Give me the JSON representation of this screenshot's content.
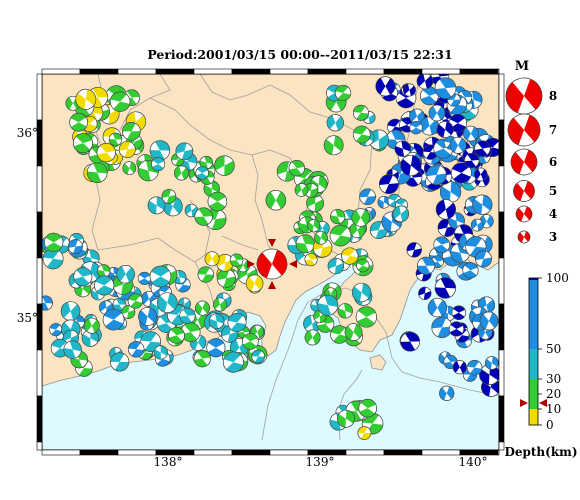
{
  "title": "Period:2001/03/15 00:00--2011/03/15 22:31",
  "lon_ticks": [
    "138°",
    "139°",
    "140°"
  ],
  "lat_ticks": [
    "36°",
    "35°"
  ],
  "magnitude_legend": {
    "title": "M",
    "values": [
      "8",
      "7",
      "6",
      "5",
      "4",
      "3"
    ]
  },
  "depth_colorbar": {
    "label": "Depth(km)",
    "ticks": [
      "100",
      "50",
      "30",
      "20",
      "10",
      "0"
    ],
    "colors": {
      "0-10": "#f2dc00",
      "10-30": "#33cc33",
      "30-50": "#20b8c8",
      "50-100": "#1e8ee0",
      "100+": "#0000b4"
    }
  },
  "colors": {
    "land": "#fbe4c2",
    "sea": "#dcfaff",
    "highlight_event": "#ee0000",
    "border": "#a0a0a0"
  },
  "highlight_event": {
    "lon": 138.72,
    "lat": 35.3,
    "magnitude": 6.4,
    "depth": 14
  }
}
